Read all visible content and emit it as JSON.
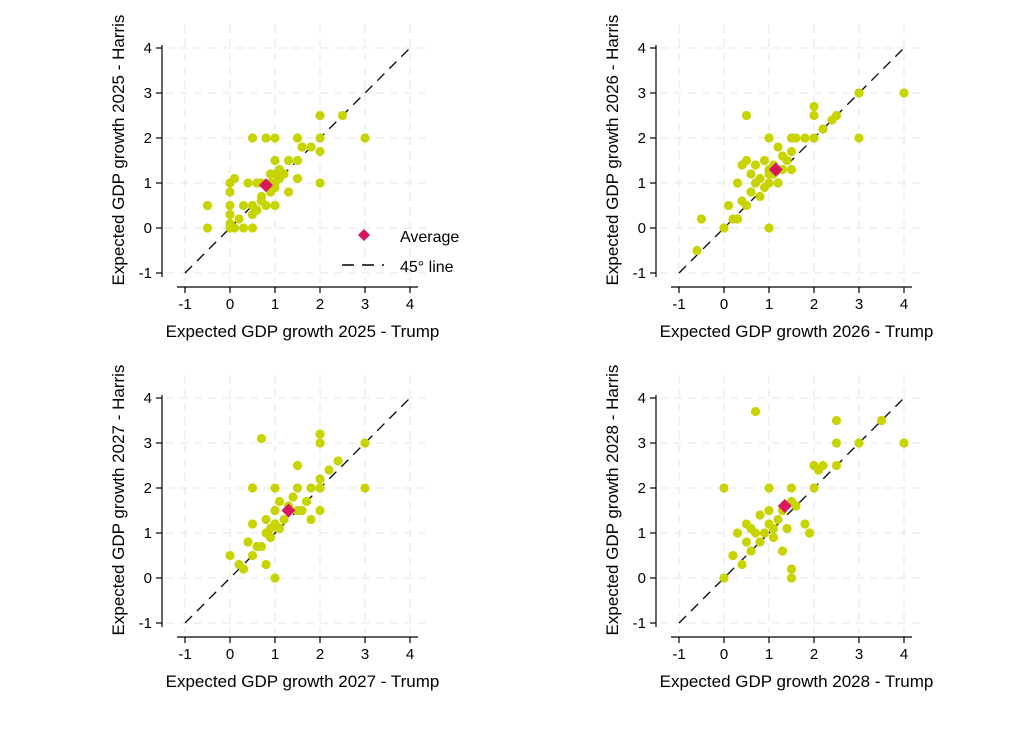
{
  "colors": {
    "points": "#c8d400",
    "average": "#d8175f",
    "line": "#000000",
    "grid": "#e6e6e6",
    "background": "#ffffff"
  },
  "legend": {
    "average_label": "Average",
    "line_label": "45° line",
    "placement": "bottom-right of top-left panel"
  },
  "chart_data": [
    {
      "type": "scatter",
      "xlabel": "Expected GDP growth 2025 - Trump",
      "ylabel": "Expected GDP growth 2025 - Harris",
      "xlim": [
        -1,
        4
      ],
      "ylim": [
        -1,
        4
      ],
      "ticks": [
        -1,
        0,
        1,
        2,
        3,
        4
      ],
      "grid": true,
      "average": [
        0.8,
        0.95
      ],
      "points": [
        [
          -0.5,
          0
        ],
        [
          -0.5,
          0.5
        ],
        [
          0,
          1
        ],
        [
          0,
          0.8
        ],
        [
          0,
          0.5
        ],
        [
          0,
          0.3
        ],
        [
          0,
          0.1
        ],
        [
          0,
          0
        ],
        [
          0.1,
          1.1
        ],
        [
          0.1,
          0
        ],
        [
          0.2,
          0.2
        ],
        [
          0.3,
          0.5
        ],
        [
          0.4,
          1
        ],
        [
          0.5,
          0.5
        ],
        [
          0.5,
          0.3
        ],
        [
          0.5,
          0
        ],
        [
          0.5,
          2
        ],
        [
          0.6,
          1
        ],
        [
          0.7,
          1
        ],
        [
          0.7,
          0.7
        ],
        [
          0.8,
          0.5
        ],
        [
          0.8,
          2
        ],
        [
          0.9,
          1
        ],
        [
          0.9,
          0.8
        ],
        [
          1,
          2
        ],
        [
          1,
          1.5
        ],
        [
          1,
          1.2
        ],
        [
          1,
          1
        ],
        [
          1,
          0.9
        ],
        [
          1,
          0.5
        ],
        [
          1.1,
          1.1
        ],
        [
          1.2,
          1.2
        ],
        [
          1.3,
          1.5
        ],
        [
          1.3,
          0.8
        ],
        [
          1.5,
          2
        ],
        [
          1.5,
          1.5
        ],
        [
          1.5,
          1.1
        ],
        [
          1.6,
          1.8
        ],
        [
          1.8,
          1.8
        ],
        [
          2,
          2.5
        ],
        [
          2,
          2
        ],
        [
          2,
          1.7
        ],
        [
          2,
          1
        ],
        [
          2.5,
          2.5
        ],
        [
          3,
          2
        ],
        [
          0.3,
          0
        ],
        [
          0.6,
          0.4
        ],
        [
          0.7,
          0.6
        ],
        [
          0.9,
          1.2
        ],
        [
          1.1,
          1.3
        ]
      ]
    },
    {
      "type": "scatter",
      "xlabel": "Expected GDP growth 2026 - Trump",
      "ylabel": "Expected GDP growth 2026 - Harris",
      "xlim": [
        -1,
        4
      ],
      "ylim": [
        -1,
        4
      ],
      "ticks": [
        -1,
        0,
        1,
        2,
        3,
        4
      ],
      "grid": true,
      "average": [
        1.15,
        1.3
      ],
      "points": [
        [
          -0.6,
          -0.5
        ],
        [
          -0.5,
          0.2
        ],
        [
          0,
          0
        ],
        [
          0.1,
          0.5
        ],
        [
          0.2,
          0.2
        ],
        [
          0.3,
          0.2
        ],
        [
          0.3,
          1
        ],
        [
          0.4,
          1.4
        ],
        [
          0.5,
          1.5
        ],
        [
          0.5,
          0.5
        ],
        [
          0.5,
          2.5
        ],
        [
          0.6,
          0.8
        ],
        [
          0.6,
          1.2
        ],
        [
          0.7,
          1
        ],
        [
          0.8,
          1.1
        ],
        [
          0.8,
          0.7
        ],
        [
          0.9,
          1.5
        ],
        [
          1,
          1.3
        ],
        [
          1,
          1.2
        ],
        [
          1,
          1
        ],
        [
          1,
          0
        ],
        [
          1,
          2
        ],
        [
          1.1,
          1.4
        ],
        [
          1.1,
          1.2
        ],
        [
          1.2,
          1.8
        ],
        [
          1.3,
          1.6
        ],
        [
          1.3,
          1.3
        ],
        [
          1.4,
          1.5
        ],
        [
          1.5,
          2
        ],
        [
          1.5,
          1.7
        ],
        [
          1.6,
          2
        ],
        [
          1.8,
          2
        ],
        [
          2,
          2.7
        ],
        [
          2,
          2.5
        ],
        [
          2,
          2
        ],
        [
          2.2,
          2.2
        ],
        [
          2.4,
          2.4
        ],
        [
          2.5,
          2.5
        ],
        [
          3,
          3
        ],
        [
          3,
          2
        ],
        [
          4,
          3
        ],
        [
          0.7,
          1.4
        ],
        [
          0.9,
          0.9
        ],
        [
          1.2,
          1
        ],
        [
          1.5,
          1.3
        ],
        [
          0.4,
          0.6
        ]
      ]
    },
    {
      "type": "scatter",
      "xlabel": "Expected GDP growth 2027 - Trump",
      "ylabel": "Expected GDP growth 2027 - Harris",
      "xlim": [
        -1,
        4
      ],
      "ylim": [
        -1,
        4
      ],
      "ticks": [
        -1,
        0,
        1,
        2,
        3,
        4
      ],
      "grid": true,
      "average": [
        1.3,
        1.5
      ],
      "points": [
        [
          0,
          0.5
        ],
        [
          0.2,
          0.3
        ],
        [
          0.3,
          0.2
        ],
        [
          0.4,
          0.8
        ],
        [
          0.5,
          0.5
        ],
        [
          0.5,
          2
        ],
        [
          0.5,
          1.2
        ],
        [
          0.6,
          0.7
        ],
        [
          0.7,
          0.7
        ],
        [
          0.7,
          3.1
        ],
        [
          0.8,
          0.3
        ],
        [
          0.8,
          1
        ],
        [
          0.8,
          1.3
        ],
        [
          0.9,
          1.1
        ],
        [
          1,
          1.5
        ],
        [
          1,
          1.2
        ],
        [
          1,
          0
        ],
        [
          1,
          2
        ],
        [
          1.1,
          1.1
        ],
        [
          1.2,
          1.3
        ],
        [
          1.3,
          1.6
        ],
        [
          1.4,
          1.8
        ],
        [
          1.5,
          2.5
        ],
        [
          1.5,
          1.5
        ],
        [
          1.5,
          2
        ],
        [
          1.6,
          1.5
        ],
        [
          1.7,
          1.7
        ],
        [
          1.8,
          2
        ],
        [
          1.8,
          1.3
        ],
        [
          2,
          3.2
        ],
        [
          2,
          3
        ],
        [
          2,
          2
        ],
        [
          2,
          1.5
        ],
        [
          2,
          2.2
        ],
        [
          2.2,
          2.4
        ],
        [
          2.4,
          2.6
        ],
        [
          3,
          3
        ],
        [
          3,
          2
        ],
        [
          0.9,
          0.9
        ],
        [
          1.1,
          1.7
        ]
      ]
    },
    {
      "type": "scatter",
      "xlabel": "Expected GDP growth 2028 - Trump",
      "ylabel": "Expected GDP growth 2028 - Harris",
      "xlim": [
        -1,
        4
      ],
      "ylim": [
        -1,
        4
      ],
      "ticks": [
        -1,
        0,
        1,
        2,
        3,
        4
      ],
      "grid": true,
      "average": [
        1.35,
        1.6
      ],
      "points": [
        [
          0,
          0
        ],
        [
          0,
          2
        ],
        [
          0.2,
          0.5
        ],
        [
          0.3,
          1
        ],
        [
          0.4,
          0.3
        ],
        [
          0.5,
          0.8
        ],
        [
          0.5,
          1.2
        ],
        [
          0.6,
          0.6
        ],
        [
          0.7,
          1
        ],
        [
          0.7,
          3.7
        ],
        [
          0.8,
          0.8
        ],
        [
          0.9,
          1
        ],
        [
          1,
          1.5
        ],
        [
          1,
          1.2
        ],
        [
          1,
          2
        ],
        [
          1.1,
          1.1
        ],
        [
          1.2,
          1.3
        ],
        [
          1.3,
          0.6
        ],
        [
          1.3,
          1.5
        ],
        [
          1.5,
          2
        ],
        [
          1.5,
          1.7
        ],
        [
          1.5,
          0.2
        ],
        [
          1.5,
          0
        ],
        [
          1.6,
          1.6
        ],
        [
          1.8,
          1.2
        ],
        [
          1.9,
          1
        ],
        [
          2,
          2.5
        ],
        [
          2,
          2
        ],
        [
          2.1,
          2.4
        ],
        [
          2.2,
          2.5
        ],
        [
          2.5,
          3.5
        ],
        [
          2.5,
          3
        ],
        [
          2.5,
          2.5
        ],
        [
          3,
          3
        ],
        [
          3.5,
          3.5
        ],
        [
          4,
          3
        ],
        [
          0.8,
          1.4
        ],
        [
          1.1,
          0.9
        ],
        [
          1.4,
          1.1
        ],
        [
          0.6,
          1.1
        ]
      ]
    }
  ]
}
